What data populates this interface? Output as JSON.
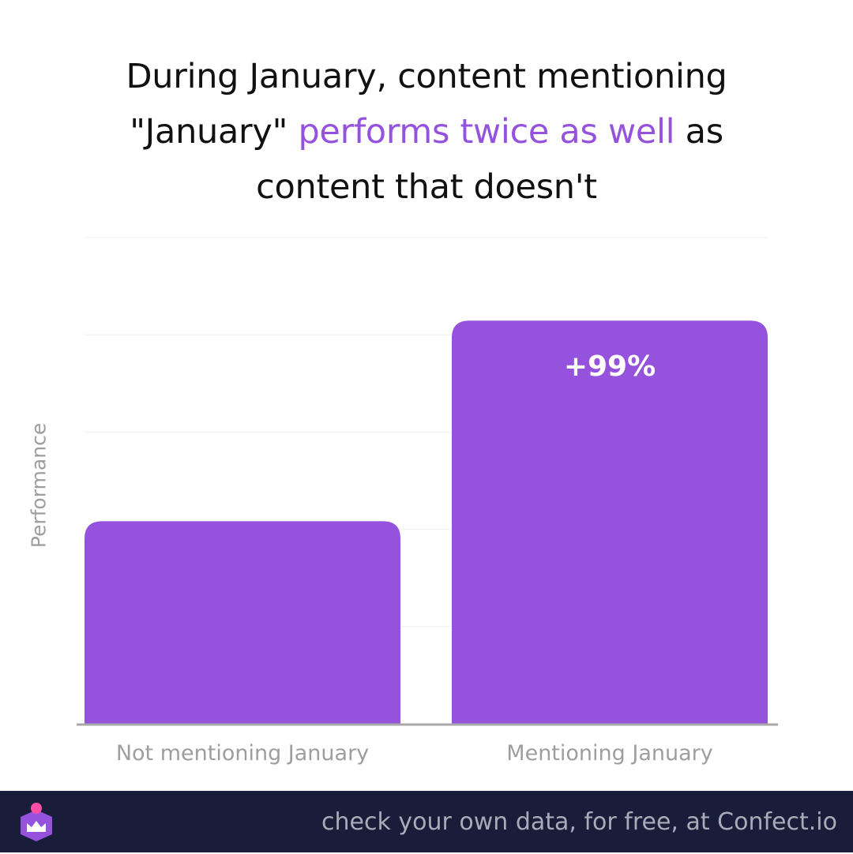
{
  "title": {
    "part1": "During January, content mentioning",
    "part2_before": "\"January\" ",
    "highlight": "performs twice as well",
    "part2_after": " as",
    "part3": "content that doesn't"
  },
  "colors": {
    "bar": "#9552dc",
    "highlight": "#9552dc",
    "axis_label": "#9e9e9e",
    "footer_bg": "#1a1d3a",
    "footer_text": "#a9abb8"
  },
  "chart_data": {
    "type": "bar",
    "categories": [
      "Not mentioning January",
      "Mentioning January"
    ],
    "values": [
      1,
      1.99
    ],
    "data_labels": [
      "",
      "+99%"
    ],
    "title": "During January, content mentioning \"January\" performs twice as well as content that doesn't",
    "xlabel": "",
    "ylabel": "Performance",
    "ylim": [
      0,
      2.4
    ],
    "grid": true,
    "legend": "none"
  },
  "footer": {
    "text": "check your own data, for free, at Confect.io",
    "logo_icon": "crown-logo-icon"
  }
}
